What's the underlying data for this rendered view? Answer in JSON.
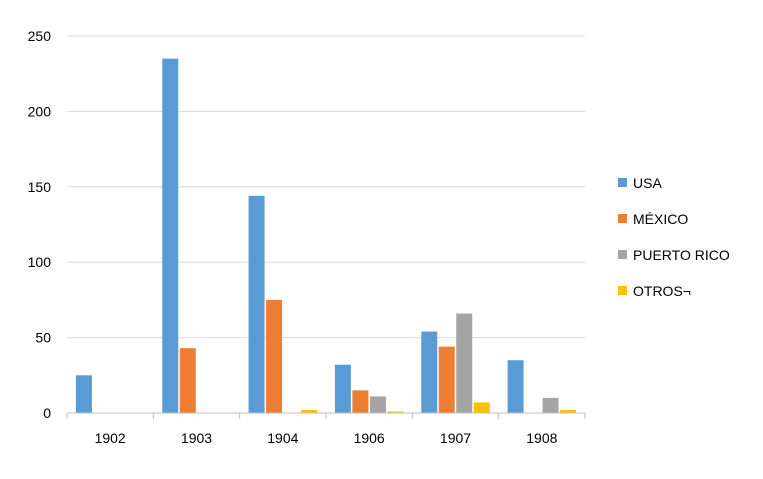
{
  "chart_data": {
    "type": "bar",
    "categories": [
      "1902",
      "1903",
      "1904",
      "1906",
      "1907",
      "1908"
    ],
    "series": [
      {
        "name": "USA",
        "color": "#5B9BD5",
        "values": [
          25,
          235,
          144,
          32,
          54,
          35
        ]
      },
      {
        "name": "MÉXICO",
        "color": "#ED7D31",
        "values": [
          0,
          43,
          75,
          15,
          44,
          0
        ]
      },
      {
        "name": "PUERTO RICO",
        "color": "#A5A5A5",
        "values": [
          0,
          0,
          0,
          11,
          66,
          10
        ]
      },
      {
        "name": "OTROS¬",
        "color": "#FFC000",
        "values": [
          0,
          0,
          2,
          1,
          7,
          2
        ]
      }
    ],
    "ylim": [
      0,
      250
    ],
    "yticks": [
      "0",
      "50",
      "100",
      "150",
      "200",
      "250"
    ],
    "grid": true,
    "legend": "right"
  }
}
